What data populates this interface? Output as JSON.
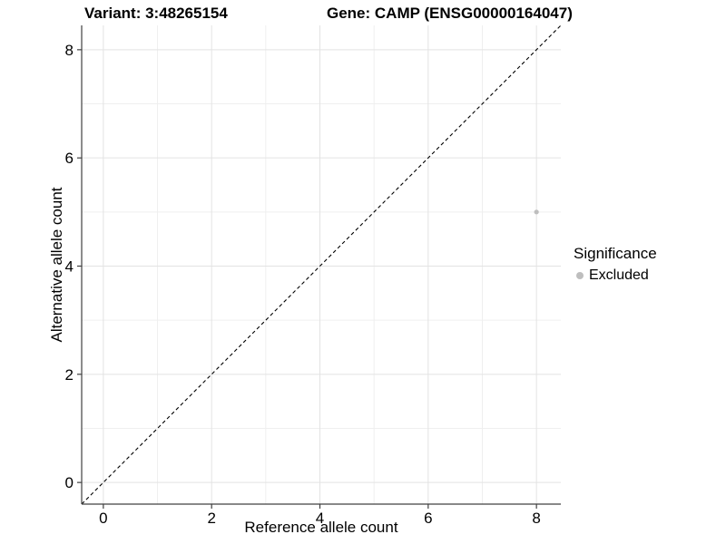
{
  "chart_data": {
    "type": "scatter",
    "title": {
      "variant": "Variant: 3:48265154",
      "gene": "Gene: CAMP (ENSG00000164047)"
    },
    "xlabel": "Reference allele count",
    "ylabel": "Alternative allele count",
    "xlim": [
      -0.4,
      8.45
    ],
    "ylim": [
      -0.4,
      8.45
    ],
    "x_ticks": [
      0,
      2,
      4,
      6,
      8
    ],
    "y_ticks": [
      0,
      2,
      4,
      6,
      8
    ],
    "x_minor_gridlines": [
      1,
      3,
      5,
      7
    ],
    "y_minor_gridlines": [
      1,
      3,
      5,
      7
    ],
    "grid": true,
    "series": [
      {
        "name": "Excluded",
        "color": "#bebebe",
        "points": [
          {
            "x": 8,
            "y": 5
          }
        ]
      }
    ],
    "reference_line": {
      "slope": 1,
      "intercept": 0,
      "style": "dashed",
      "color": "#000000"
    },
    "legend": {
      "title": "Significance",
      "position": "right",
      "entries": [
        {
          "label": "Excluded",
          "color": "#bebebe"
        }
      ]
    },
    "colors": {
      "background": "#ffffff",
      "grid_major": "#e3e3e3",
      "grid_minor": "#efefef",
      "axis": "#404040",
      "text": "#000000"
    }
  }
}
